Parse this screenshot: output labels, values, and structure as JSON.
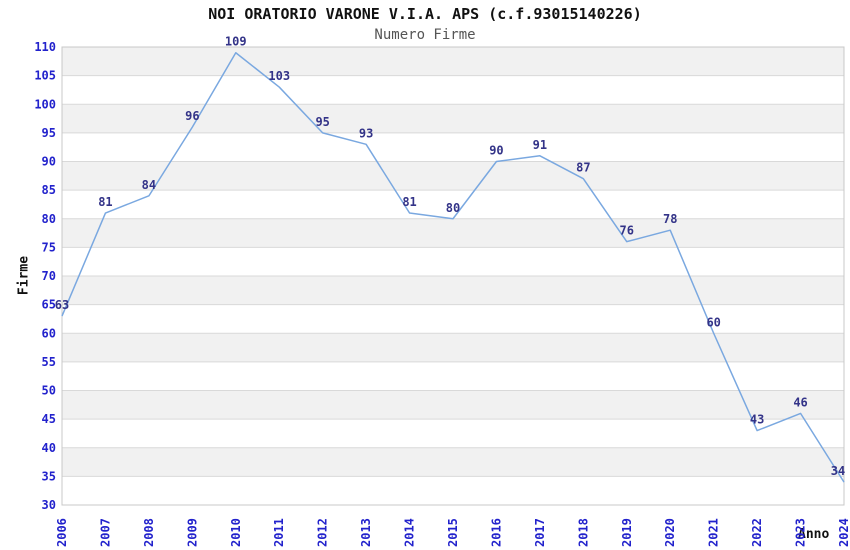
{
  "chart_data": {
    "type": "line",
    "title": "NOI ORATORIO VARONE V.I.A. APS (c.f.93015140226)",
    "subtitle": "Numero Firme",
    "xlabel": "Anno",
    "ylabel": "Firme",
    "categories": [
      "2006",
      "2007",
      "2008",
      "2009",
      "2010",
      "2011",
      "2012",
      "2013",
      "2014",
      "2015",
      "2016",
      "2017",
      "2018",
      "2019",
      "2020",
      "2021",
      "2022",
      "2023",
      "2024"
    ],
    "values": [
      63,
      81,
      84,
      96,
      109,
      103,
      95,
      93,
      81,
      80,
      90,
      91,
      87,
      76,
      78,
      60,
      43,
      46,
      34
    ],
    "ylim": [
      30,
      110
    ],
    "ytick_step": 5,
    "grid": true,
    "legend": "none",
    "band_pattern": "alternating-horizontal",
    "colors": {
      "line": "#7aa8e0",
      "tick_label": "#2222cc",
      "data_label": "#333388",
      "band": "#f1f1f1",
      "gridline": "#d9d9d9",
      "plot_border": "#c8c8c8",
      "title": "#111111",
      "subtitle": "#555555",
      "axis_title": "#111111",
      "background": "#ffffff"
    }
  }
}
